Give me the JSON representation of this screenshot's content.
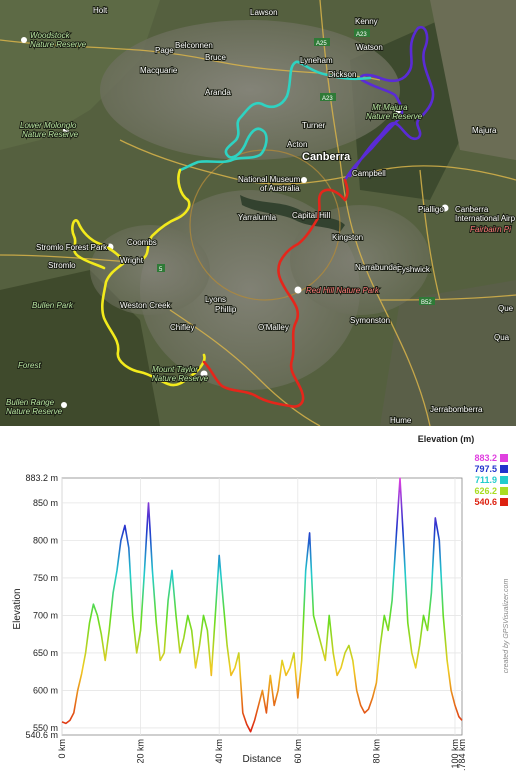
{
  "map": {
    "places": [
      {
        "id": "holt",
        "text": "Holt"
      },
      {
        "id": "lawson",
        "text": "Lawson"
      },
      {
        "id": "kenny",
        "text": "Kenny"
      },
      {
        "id": "page",
        "text": "Page"
      },
      {
        "id": "belconnen",
        "text": "Belconnen"
      },
      {
        "id": "bruce",
        "text": "Bruce"
      },
      {
        "id": "lyneham",
        "text": "Lyneham"
      },
      {
        "id": "watson",
        "text": "Watson"
      },
      {
        "id": "macquarie",
        "text": "Macquarie"
      },
      {
        "id": "dickson",
        "text": "Dickson"
      },
      {
        "id": "aranda",
        "text": "Aranda"
      },
      {
        "id": "turner",
        "text": "Turner"
      },
      {
        "id": "majura",
        "text": "Majura"
      },
      {
        "id": "acton",
        "text": "Acton"
      },
      {
        "id": "canberra",
        "text": "Canberra"
      },
      {
        "id": "museum1",
        "text": "National Museum"
      },
      {
        "id": "museum2",
        "text": "of Australia"
      },
      {
        "id": "campbell",
        "text": "Campbell"
      },
      {
        "id": "pialligo",
        "text": "Pialligo"
      },
      {
        "id": "airport1",
        "text": "Canberra"
      },
      {
        "id": "airport2",
        "text": "International Airp"
      },
      {
        "id": "yarralumla",
        "text": "Yarralumla"
      },
      {
        "id": "capitalhill",
        "text": "Capital Hill"
      },
      {
        "id": "kingston",
        "text": "Kingston"
      },
      {
        "id": "stromlofp",
        "text": "Stromlo Forest Park"
      },
      {
        "id": "coombs",
        "text": "Coombs"
      },
      {
        "id": "stromlo",
        "text": "Stromlo"
      },
      {
        "id": "wright",
        "text": "Wright"
      },
      {
        "id": "narrabundah",
        "text": "Narrabundah"
      },
      {
        "id": "fyshwick",
        "text": "Fyshwick"
      },
      {
        "id": "westoncreek",
        "text": "Weston Creek"
      },
      {
        "id": "lyons",
        "text": "Lyons"
      },
      {
        "id": "phillip",
        "text": "Phillip"
      },
      {
        "id": "chifley",
        "text": "Chifley"
      },
      {
        "id": "omalley",
        "text": "O'Malley"
      },
      {
        "id": "symonston",
        "text": "Symonston"
      },
      {
        "id": "jerrabomberra",
        "text": "Jerrabomberra"
      },
      {
        "id": "hume",
        "text": "Hume"
      },
      {
        "id": "que",
        "text": "Que"
      },
      {
        "id": "oa",
        "text": "Qua"
      }
    ],
    "parks": [
      {
        "id": "woodstock1",
        "text": "Woodstock"
      },
      {
        "id": "woodstock2",
        "text": "Nature Reserve"
      },
      {
        "id": "molonglo1",
        "text": "Lower Molonglo"
      },
      {
        "id": "molonglo2",
        "text": "Nature Reserve"
      },
      {
        "id": "majura1",
        "text": "Mt Majura"
      },
      {
        "id": "majura2",
        "text": "Nature Reserve"
      },
      {
        "id": "bullen",
        "text": "Bullen Park"
      },
      {
        "id": "redhill",
        "text": "Red Hill Nature Park"
      },
      {
        "id": "taylor1",
        "text": "Mount Taylor"
      },
      {
        "id": "taylor2",
        "text": "Nature Reserve"
      },
      {
        "id": "forest",
        "text": "Forest"
      },
      {
        "id": "bullenrange1",
        "text": "Bullen Range"
      },
      {
        "id": "bullenrange2",
        "text": "Nature Reserve"
      },
      {
        "id": "fairbairn",
        "text": "Fairbairn Pi"
      }
    ],
    "roads": [
      {
        "id": "a25",
        "text": "A25"
      },
      {
        "id": "a23a",
        "text": "A23"
      },
      {
        "id": "a23b",
        "text": "A23"
      },
      {
        "id": "b52",
        "text": "B52"
      },
      {
        "id": "r5",
        "text": "5"
      }
    ],
    "track_colors": {
      "purple": "#5a2bd6",
      "cyan": "#2ed3c2",
      "yellow": "#f2ea1c",
      "red": "#e5261b"
    }
  },
  "chart_data": {
    "type": "area",
    "xlabel": "Distance",
    "ylabel": "Elevation",
    "legend_title": "Elevation (m)",
    "legend": [
      {
        "value": "883.2",
        "color": "#e040e0"
      },
      {
        "value": "797.5",
        "color": "#2233cc"
      },
      {
        "value": "711.9",
        "color": "#22cccc"
      },
      {
        "value": "626.2",
        "color": "#aadd22"
      },
      {
        "value": "540.6",
        "color": "#dd2211"
      }
    ],
    "xlim": [
      0,
      101.784
    ],
    "ylim": [
      540.6,
      883.2
    ],
    "xticks": [
      "0 km",
      "20 km",
      "40 km",
      "60 km",
      "80 km",
      "100 km",
      "101.784 km"
    ],
    "xtick_values": [
      0,
      20,
      40,
      60,
      80,
      100,
      101.784
    ],
    "yticks": [
      "550 m",
      "600 m",
      "650 m",
      "700 m",
      "750 m",
      "800 m",
      "850 m"
    ],
    "ytick_values": [
      550,
      600,
      650,
      700,
      750,
      800,
      850
    ],
    "ymax_label": "883.2 m",
    "ymin_label": "540.6 m",
    "x": [
      0,
      1,
      2,
      3,
      4,
      5,
      6,
      7,
      8,
      9,
      10,
      11,
      12,
      13,
      14,
      15,
      16,
      17,
      18,
      19,
      20,
      21,
      22,
      23,
      24,
      25,
      26,
      27,
      28,
      29,
      30,
      31,
      32,
      33,
      34,
      35,
      36,
      37,
      38,
      39,
      40,
      41,
      42,
      43,
      44,
      45,
      46,
      47,
      48,
      49,
      50,
      51,
      52,
      53,
      54,
      55,
      56,
      57,
      58,
      59,
      60,
      61,
      62,
      63,
      64,
      65,
      66,
      67,
      68,
      69,
      70,
      71,
      72,
      73,
      74,
      75,
      76,
      77,
      78,
      79,
      80,
      81,
      82,
      83,
      84,
      85,
      86,
      87,
      88,
      89,
      90,
      91,
      92,
      93,
      94,
      95,
      96,
      97,
      98,
      99,
      100,
      101,
      101.784
    ],
    "y": [
      558,
      556,
      560,
      570,
      600,
      622,
      650,
      690,
      715,
      700,
      675,
      640,
      680,
      730,
      760,
      800,
      820,
      790,
      700,
      650,
      680,
      760,
      850,
      760,
      690,
      640,
      650,
      720,
      760,
      700,
      650,
      670,
      700,
      680,
      630,
      660,
      700,
      680,
      620,
      700,
      780,
      720,
      660,
      620,
      630,
      650,
      570,
      555,
      545,
      560,
      580,
      600,
      570,
      620,
      580,
      600,
      640,
      620,
      630,
      650,
      590,
      640,
      760,
      810,
      700,
      680,
      660,
      640,
      700,
      650,
      620,
      630,
      650,
      660,
      640,
      600,
      580,
      570,
      575,
      590,
      610,
      660,
      700,
      680,
      720,
      800,
      883,
      790,
      690,
      650,
      630,
      660,
      700,
      680,
      730,
      830,
      800,
      700,
      640,
      600,
      580,
      565,
      560
    ]
  },
  "credit": "created by GPSVisualizer.com"
}
